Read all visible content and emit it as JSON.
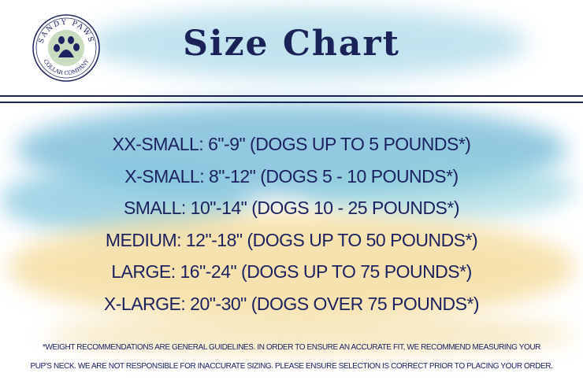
{
  "brand": {
    "logo_text_top": "SANDY PAWS",
    "logo_text_bottom": "COLLAR COMPANY"
  },
  "title": "Size Chart",
  "sizes": [
    "XX-Small: 6\"-9\" (dogs up to 5 pounds*)",
    "X-Small: 8\"-12\" (dogs 5 - 10 pounds*)",
    "Small: 10\"-14\" (dogs 10 - 25 pounds*)",
    "Medium: 12\"-18\" (dogs up to 50 pounds*)",
    "Large: 16\"-24\" (dogs up to 75 pounds*)",
    "X-Large: 20\"-30\" (dogs over 75 pounds*)"
  ],
  "footnote": [
    "*Weight recommendations are general guidelines. In order to ensure an accurate fit, we recommend measuring your",
    "pup's neck. We are not responsible for inaccurate sizing. Please ensure selection is correct prior to placing your order."
  ],
  "colors": {
    "text": "#1c2260",
    "blue_wash": "#7cc3dc",
    "sand_wash": "#f5dc9c"
  }
}
